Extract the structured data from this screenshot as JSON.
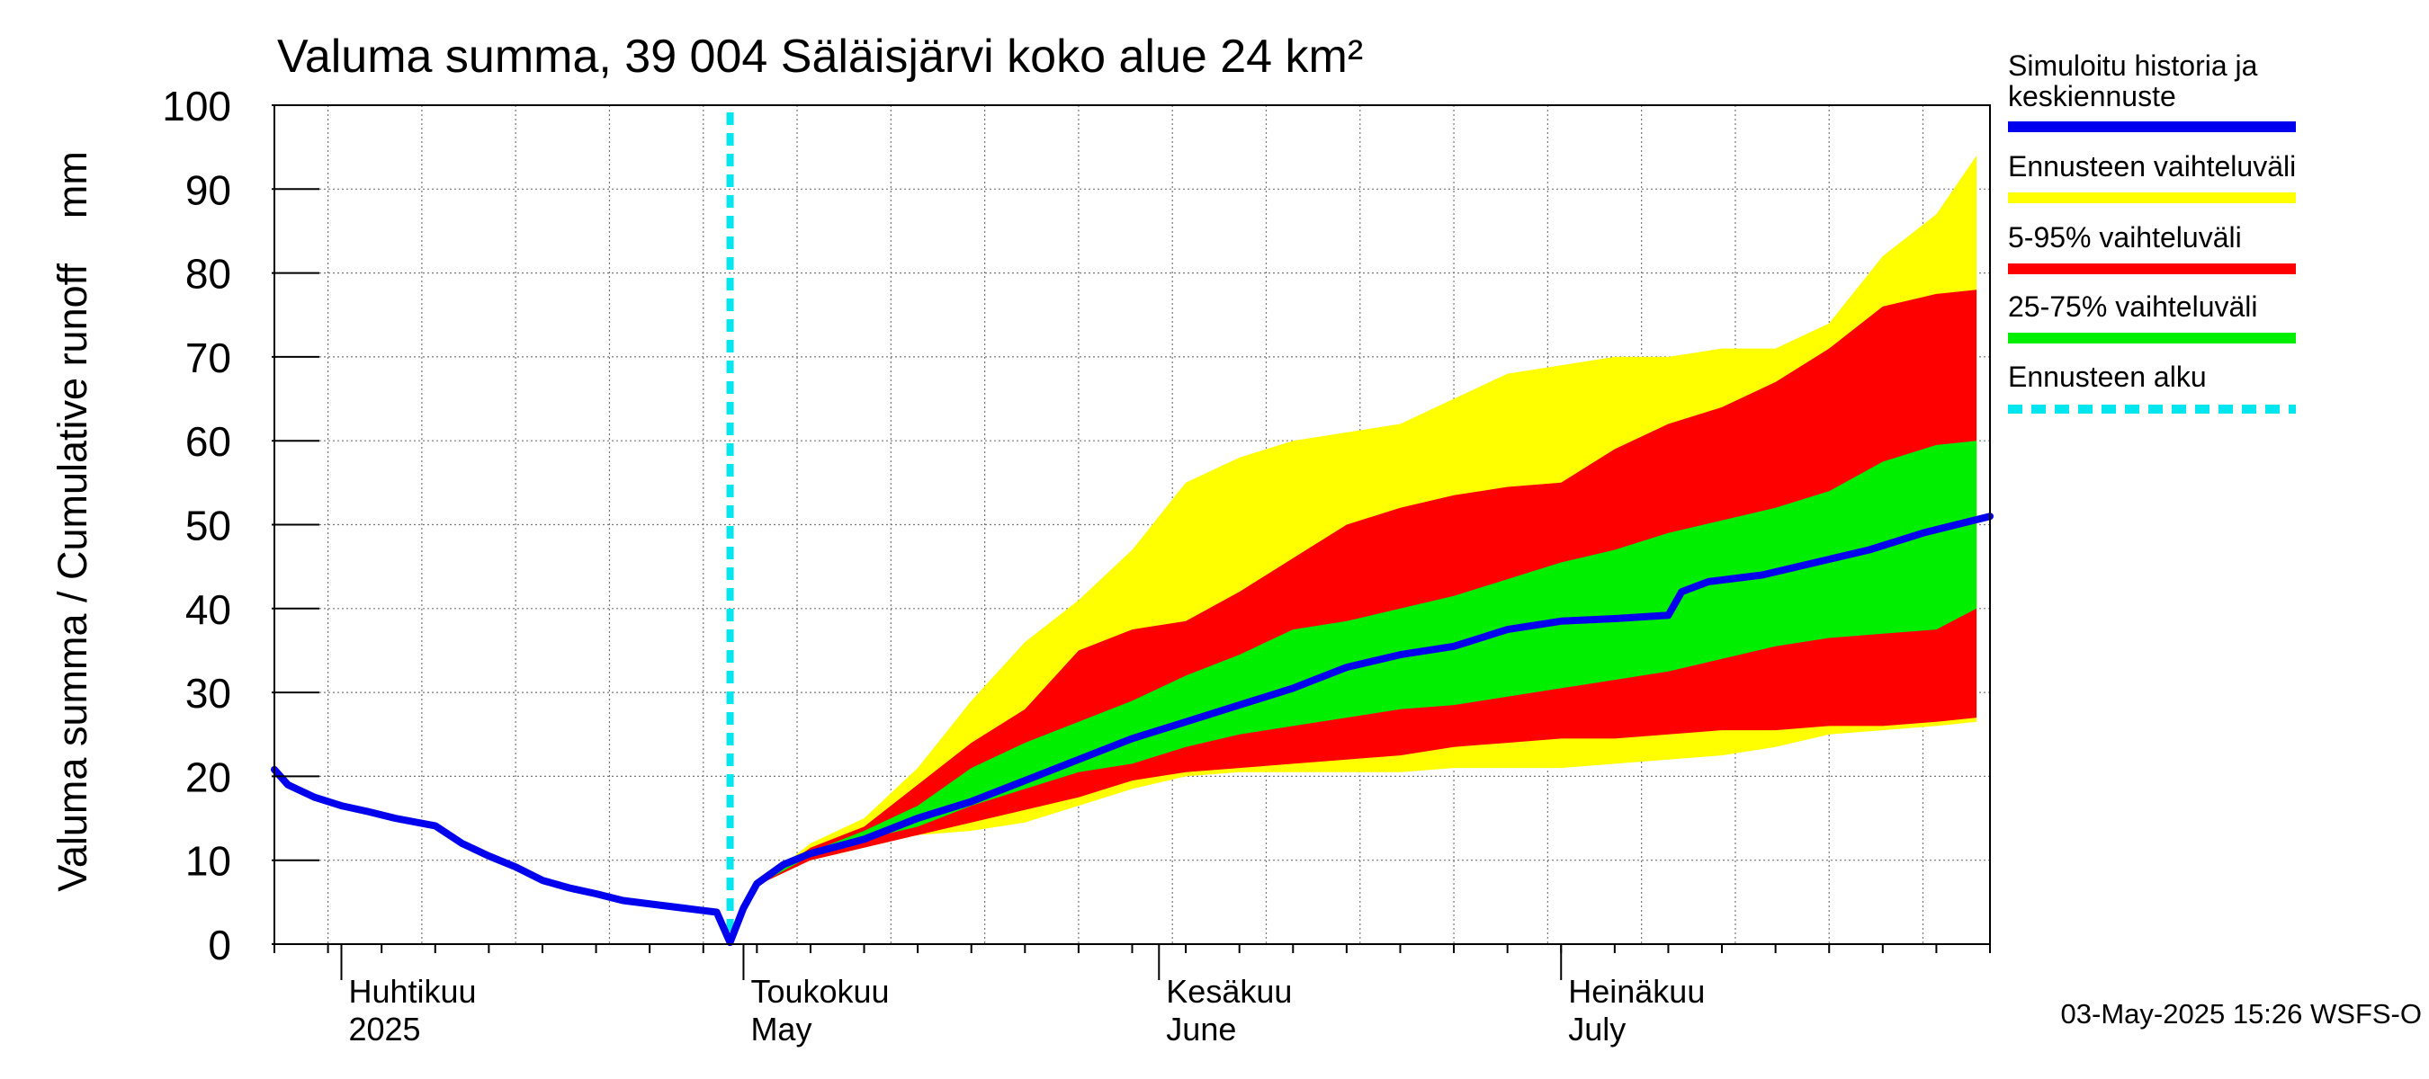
{
  "chart_data": {
    "type": "area",
    "title": "Valuma summa, 39 004 Säläisjärvi koko alue 24 km²",
    "ylabel": "Valuma summa / Cumulative runoff    mm",
    "ylim": [
      0,
      100
    ],
    "yticks": [
      "0",
      "10",
      "20",
      "30",
      "40",
      "50",
      "60",
      "70",
      "80",
      "90",
      "100"
    ],
    "xlim": [
      "2025-03-27",
      "2025-08-02"
    ],
    "month_labels": [
      {
        "date": "2025-04-01",
        "line1": "Huhtikuu",
        "line2": "2025"
      },
      {
        "date": "2025-05-01",
        "line1": "Toukokuu",
        "line2": "May"
      },
      {
        "date": "2025-06-01",
        "line1": "Kesäkuu",
        "line2": "June"
      },
      {
        "date": "2025-07-01",
        "line1": "Heinäkuu",
        "line2": "July"
      }
    ],
    "forecast_start": "2025-04-30",
    "grid": true,
    "legend_position": "right",
    "bands": {
      "x": [
        "2025-04-30",
        "2025-05-02",
        "2025-05-06",
        "2025-05-10",
        "2025-05-14",
        "2025-05-18",
        "2025-05-22",
        "2025-05-26",
        "2025-05-30",
        "2025-06-03",
        "2025-06-07",
        "2025-06-11",
        "2025-06-15",
        "2025-06-19",
        "2025-06-23",
        "2025-06-27",
        "2025-07-01",
        "2025-07-05",
        "2025-07-09",
        "2025-07-13",
        "2025-07-17",
        "2025-07-21",
        "2025-07-25",
        "2025-07-29",
        "2025-08-01"
      ],
      "yellow_upper": [
        0,
        7,
        12,
        15,
        21,
        29,
        36,
        41,
        47,
        55,
        58,
        60,
        61,
        62,
        65,
        68,
        69,
        70,
        70,
        71,
        71,
        74,
        82,
        87,
        94
      ],
      "red_upper": [
        0,
        7,
        11.5,
        14,
        19,
        24,
        28,
        35,
        37.5,
        38.5,
        42,
        46,
        50,
        52,
        53.5,
        54.5,
        55,
        59,
        62,
        64,
        67,
        71,
        76,
        77.5,
        78
      ],
      "green_upper": [
        0,
        7,
        11,
        13.5,
        16.5,
        21,
        24,
        26.5,
        29,
        32,
        34.5,
        37.5,
        38.5,
        40,
        41.5,
        43.5,
        45.5,
        47,
        49,
        50.5,
        52,
        54,
        57.5,
        59.5,
        60
      ],
      "green_lower": [
        0,
        7,
        10.5,
        12.5,
        14,
        16.5,
        18.5,
        20.5,
        21.5,
        23.5,
        25,
        26,
        27,
        28,
        28.5,
        29.5,
        30.5,
        31.5,
        32.5,
        34,
        35.5,
        36.5,
        37,
        37.5,
        40
      ],
      "red_lower": [
        0,
        7,
        10,
        11.5,
        13,
        14.5,
        16,
        17.5,
        19.5,
        20.5,
        21,
        21.5,
        22,
        22.5,
        23.5,
        24,
        24.5,
        24.5,
        25,
        25.5,
        25.5,
        26,
        26,
        26.5,
        27
      ],
      "yellow_lower": [
        0,
        7,
        10,
        11.5,
        13,
        13.5,
        14.5,
        16.5,
        18.5,
        20,
        20.5,
        20.5,
        20.5,
        20.5,
        21,
        21,
        21,
        21.5,
        22,
        22.5,
        23.5,
        25,
        25.5,
        26,
        26.5
      ]
    },
    "series": [
      {
        "name": "Simuloitu historia ja keskiennuste",
        "color": "#0000ee",
        "x": [
          "2025-03-27",
          "2025-03-28",
          "2025-03-30",
          "2025-04-01",
          "2025-04-03",
          "2025-04-05",
          "2025-04-08",
          "2025-04-10",
          "2025-04-12",
          "2025-04-14",
          "2025-04-16",
          "2025-04-18",
          "2025-04-20",
          "2025-04-22",
          "2025-04-25",
          "2025-04-27",
          "2025-04-28",
          "2025-04-29",
          "2025-04-30",
          "2025-05-01",
          "2025-05-02",
          "2025-05-04",
          "2025-05-06",
          "2025-05-10",
          "2025-05-14",
          "2025-05-18",
          "2025-05-22",
          "2025-05-26",
          "2025-05-30",
          "2025-06-03",
          "2025-06-07",
          "2025-06-11",
          "2025-06-15",
          "2025-06-19",
          "2025-06-23",
          "2025-06-27",
          "2025-07-01",
          "2025-07-05",
          "2025-07-09",
          "2025-07-10",
          "2025-07-12",
          "2025-07-16",
          "2025-07-20",
          "2025-07-24",
          "2025-07-28",
          "2025-08-02"
        ],
        "values": [
          20.8,
          19,
          17.5,
          16.5,
          15.8,
          15,
          14.1,
          12,
          10.5,
          9.2,
          7.6,
          6.7,
          6,
          5.2,
          4.6,
          4.2,
          4,
          3.8,
          0.2,
          4.3,
          7.2,
          9.5,
          10.8,
          12.5,
          15,
          17,
          19.5,
          22,
          24.5,
          26.5,
          28.5,
          30.5,
          33,
          34.5,
          35.5,
          37.5,
          38.5,
          38.8,
          39.2,
          42,
          43.2,
          44,
          45.5,
          47,
          49,
          51
        ]
      },
      {
        "name": "Ennusteen vaihteluväli",
        "color": "#ffff00"
      },
      {
        "name": "5-95% vaihteluväli",
        "color": "#ff0000"
      },
      {
        "name": "25-75% vaihteluväli",
        "color": "#00ee00"
      },
      {
        "name": "Ennusteen alku",
        "color": "#00e5ee"
      }
    ]
  },
  "legend": {
    "items": [
      {
        "label_line1": "Simuloitu historia ja",
        "label_line2": "keskiennuste",
        "color": "#0000ee"
      },
      {
        "label_line1": "Ennusteen vaihteluväli",
        "color": "#ffff00"
      },
      {
        "label_line1": "5-95% vaihteluväli",
        "color": "#ff0000"
      },
      {
        "label_line1": "25-75% vaihteluväli",
        "color": "#00ee00"
      },
      {
        "label_line1": "Ennusteen alku",
        "color": "#00e5ee"
      }
    ]
  },
  "footer": {
    "timestamp": "03-May-2025 15:26 WSFS-O"
  }
}
